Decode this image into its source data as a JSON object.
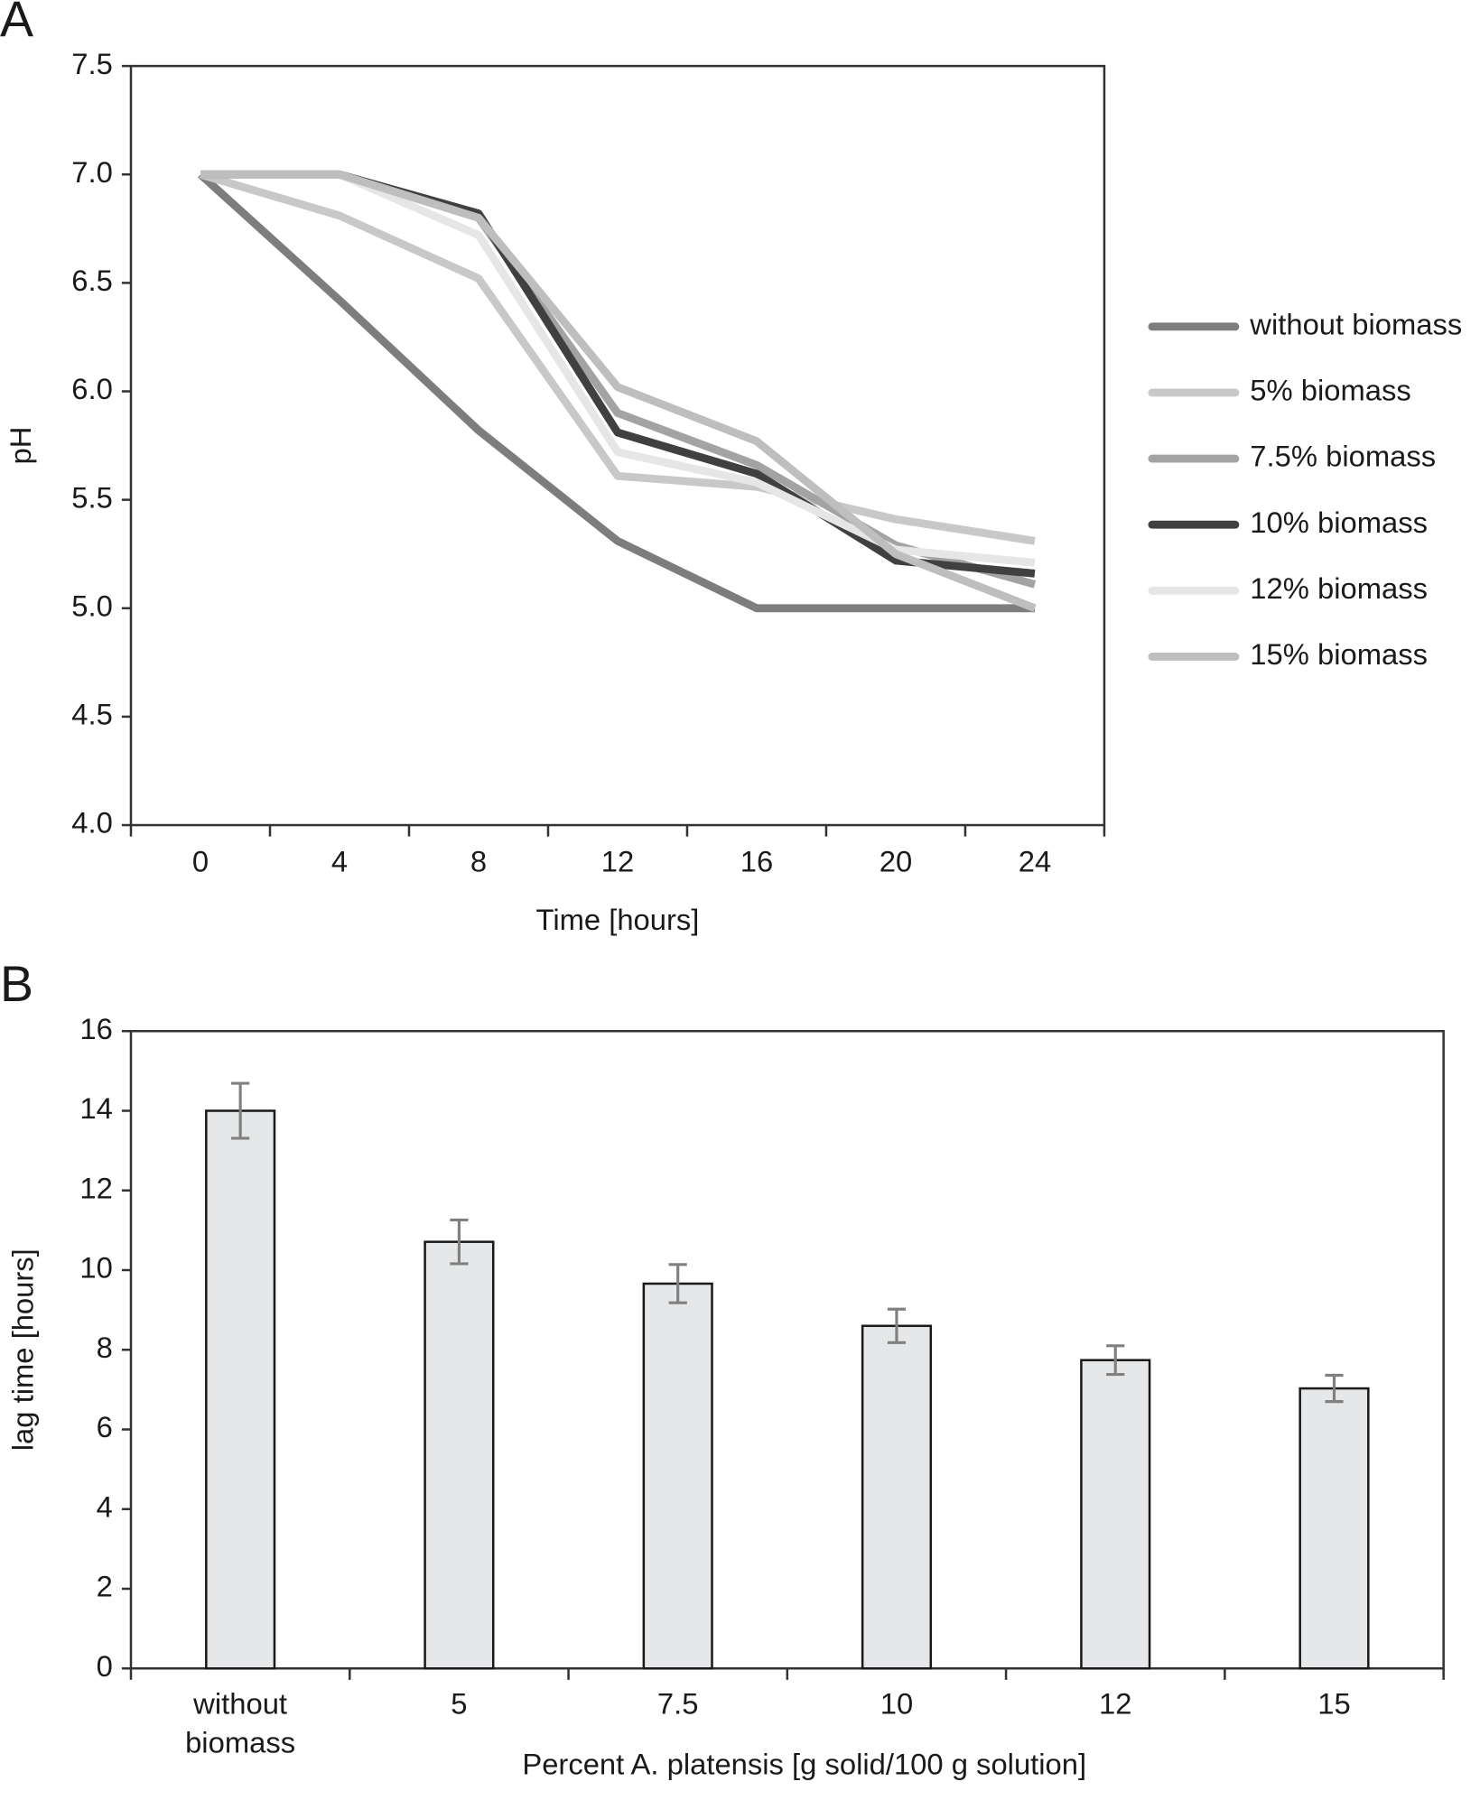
{
  "chart_data": [
    {
      "type": "line",
      "panel": "A",
      "x_label": "Time [hours]",
      "y_label": "pH",
      "categories": [
        0,
        4,
        8,
        12,
        16,
        20,
        24
      ],
      "ylim": [
        4.0,
        7.5
      ],
      "yticks": [
        {
          "value": 4.0,
          "label": "4.0"
        },
        4.5,
        {
          "value": 5.0,
          "label": "5.0"
        },
        5.5,
        {
          "value": 6.0,
          "label": "6.0"
        },
        6.5,
        {
          "value": 7.0,
          "label": "7.0"
        },
        7.5
      ],
      "legend": "right",
      "series": [
        {
          "name": "without biomass",
          "color": "#7d7d7d",
          "values": [
            7.0,
            6.42,
            5.82,
            5.31,
            5.0,
            5.0,
            5.0
          ]
        },
        {
          "name": "5% biomass",
          "color": "#c8c8c8",
          "values": [
            7.0,
            6.81,
            6.52,
            5.61,
            5.56,
            5.41,
            5.31
          ]
        },
        {
          "name": "7.5% biomass",
          "color": "#a3a3a3",
          "values": [
            7.0,
            7.0,
            6.8,
            5.9,
            5.66,
            5.29,
            5.11
          ]
        },
        {
          "name": "10% biomass",
          "color": "#404040",
          "values": [
            7.0,
            7.0,
            6.82,
            5.81,
            5.62,
            5.22,
            5.16
          ]
        },
        {
          "name": "12% biomass",
          "color": "#e6e6e6",
          "values": [
            7.0,
            7.0,
            6.72,
            5.72,
            5.58,
            5.27,
            5.21
          ]
        },
        {
          "name": "15% biomass",
          "color": "#bebebe",
          "values": [
            7.0,
            7.0,
            6.8,
            6.02,
            5.77,
            5.25,
            5.0
          ]
        }
      ]
    },
    {
      "type": "bar",
      "panel": "B",
      "x_label": "Percent A. platensis [g solid/100 g solution]",
      "y_label": "lag time [hours]",
      "categories": [
        "without biomass",
        "5",
        "7.5",
        "10",
        "12",
        "15"
      ],
      "values": [
        14.0,
        10.71,
        9.66,
        8.6,
        7.74,
        7.03
      ],
      "errors": [
        0.69,
        0.55,
        0.48,
        0.42,
        0.36,
        0.33
      ],
      "color": "#e6e7e8",
      "error_color": "#808080",
      "ylim": [
        0,
        16
      ],
      "yticks": [
        0,
        2,
        4,
        6,
        8,
        10,
        12,
        14,
        16
      ]
    }
  ]
}
